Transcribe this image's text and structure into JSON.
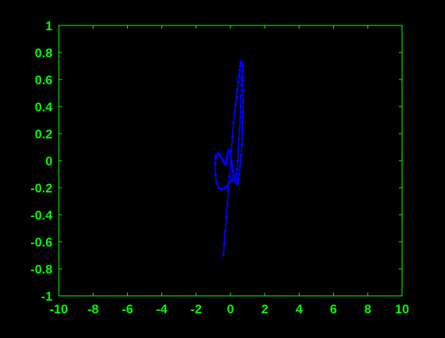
{
  "colors": {
    "background": "#000000",
    "axes": "#00ff00",
    "series": "#0000ff"
  },
  "chart_data": {
    "type": "line",
    "title": "",
    "xlabel": "",
    "ylabel": "",
    "xlim": [
      -10,
      10
    ],
    "ylim": [
      -1,
      1
    ],
    "grid": false,
    "box": true,
    "marker": "dot",
    "x_ticks": [
      -10,
      -8,
      -6,
      -4,
      -2,
      0,
      2,
      4,
      6,
      8,
      10
    ],
    "x_tick_labels": [
      "-10",
      "-8",
      "-6",
      "-4",
      "-2",
      "0",
      "2",
      "4",
      "6",
      "8",
      "10"
    ],
    "y_ticks": [
      -1,
      -0.8,
      -0.6,
      -0.4,
      -0.2,
      0,
      0.2,
      0.4,
      0.6,
      0.8,
      1
    ],
    "y_tick_labels": [
      "-1",
      "-0.8",
      "-0.6",
      "-0.4",
      "-0.2",
      "0",
      "0.2",
      "0.4",
      "0.6",
      "0.8",
      "1"
    ],
    "series": [
      {
        "x": [
          -0.42,
          -0.36,
          -0.3,
          -0.24,
          -0.18,
          -0.12,
          -0.06,
          0.0,
          0.06,
          0.12,
          0.18,
          0.24,
          0.3,
          0.36,
          0.4,
          0.45,
          0.5,
          0.55,
          0.58,
          0.6,
          0.62,
          0.65,
          0.68,
          0.7,
          0.72,
          0.73,
          0.74,
          0.74,
          0.73,
          0.72,
          0.7,
          0.66,
          0.62,
          0.56,
          0.5,
          0.45,
          0.42,
          0.4,
          0.38,
          0.34,
          0.28,
          0.2,
          0.1,
          0.0,
          -0.1,
          -0.2,
          -0.3,
          -0.42,
          -0.55,
          -0.68,
          -0.8,
          -0.88,
          -0.9,
          -0.88,
          -0.84,
          -0.78,
          -0.7,
          -0.6,
          -0.5,
          -0.42,
          -0.36,
          -0.3,
          -0.26,
          -0.22,
          -0.2,
          -0.18,
          -0.14,
          -0.1,
          -0.06,
          -0.02,
          0.02,
          0.06,
          0.1,
          0.14,
          0.18,
          0.22,
          0.26,
          0.3,
          0.34,
          0.38,
          0.42,
          0.46,
          0.5,
          0.54,
          0.58,
          0.6,
          0.62,
          0.64,
          0.65
        ],
        "y": [
          -0.7,
          -0.62,
          -0.52,
          -0.42,
          -0.32,
          -0.22,
          -0.12,
          -0.02,
          0.08,
          0.18,
          0.28,
          0.36,
          0.42,
          0.47,
          0.52,
          0.58,
          0.63,
          0.67,
          0.7,
          0.72,
          0.73,
          0.73,
          0.72,
          0.7,
          0.66,
          0.6,
          0.52,
          0.44,
          0.36,
          0.28,
          0.2,
          0.12,
          0.04,
          -0.04,
          -0.1,
          -0.14,
          -0.16,
          -0.17,
          -0.17,
          -0.16,
          -0.15,
          -0.14,
          -0.14,
          -0.15,
          -0.17,
          -0.19,
          -0.2,
          -0.21,
          -0.21,
          -0.2,
          -0.17,
          -0.1,
          -0.02,
          0.02,
          0.04,
          0.05,
          0.05,
          0.04,
          0.02,
          0.0,
          -0.02,
          -0.03,
          -0.02,
          0.0,
          0.02,
          0.04,
          0.06,
          0.07,
          0.07,
          0.06,
          0.04,
          0.0,
          -0.04,
          -0.08,
          -0.11,
          -0.13,
          -0.14,
          -0.13,
          -0.1,
          -0.06,
          0.0,
          0.08,
          0.16,
          0.24,
          0.32,
          0.4,
          0.48,
          0.56,
          0.62
        ]
      }
    ]
  }
}
